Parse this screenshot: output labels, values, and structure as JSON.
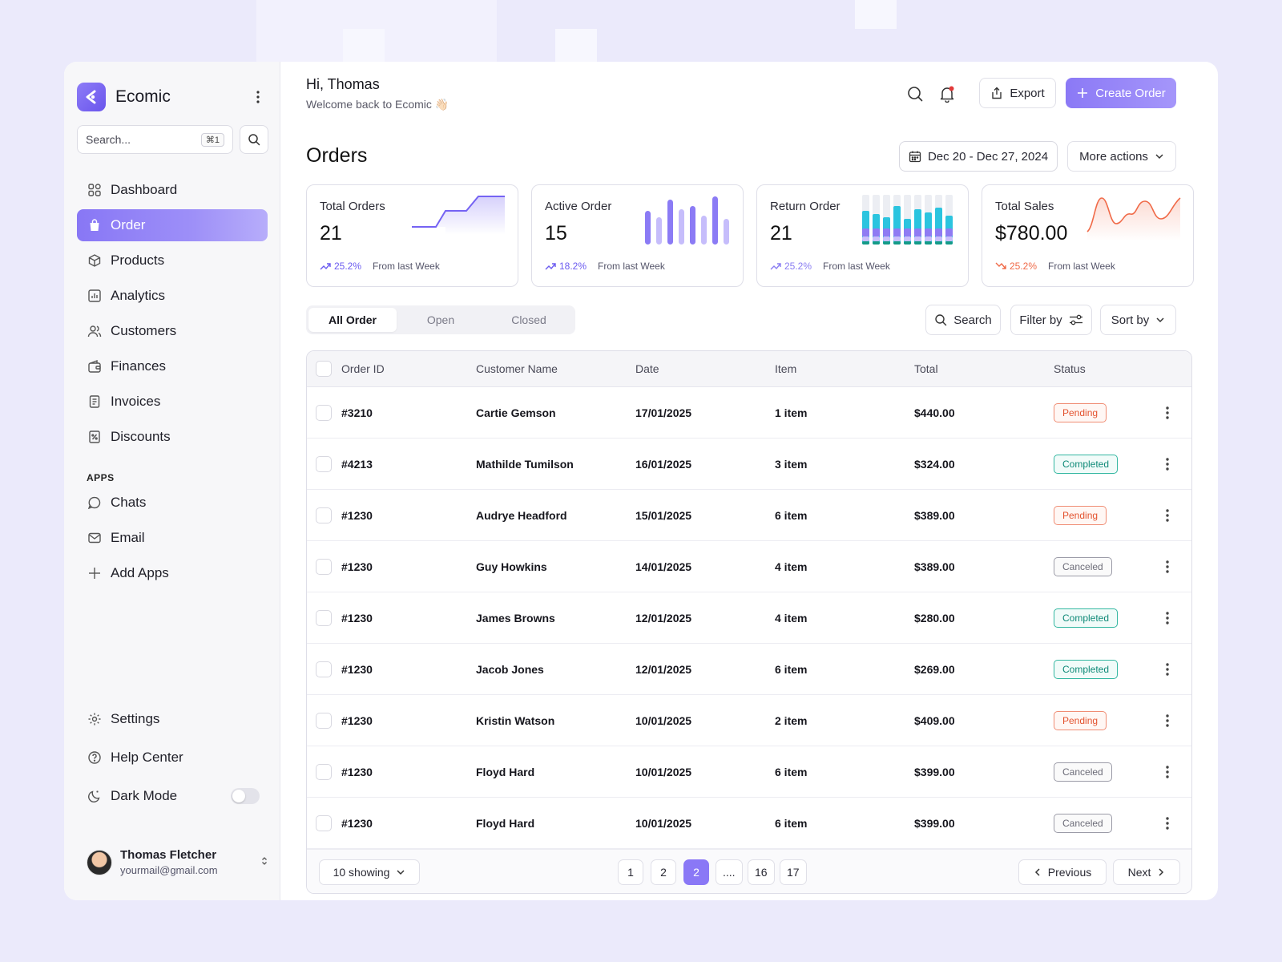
{
  "brand": {
    "name": "Ecomic"
  },
  "search": {
    "placeholder": "Search...",
    "shortcut": "⌘1"
  },
  "nav": {
    "items": [
      {
        "label": "Dashboard",
        "icon": "grid-icon"
      },
      {
        "label": "Order",
        "icon": "bag-icon",
        "active": true
      },
      {
        "label": "Products",
        "icon": "box-icon"
      },
      {
        "label": "Analytics",
        "icon": "chart-icon"
      },
      {
        "label": "Customers",
        "icon": "users-icon"
      },
      {
        "label": "Finances",
        "icon": "wallet-icon"
      },
      {
        "label": "Invoices",
        "icon": "receipt-icon"
      },
      {
        "label": "Discounts",
        "icon": "discount-icon"
      }
    ],
    "apps_label": "APPS",
    "apps": [
      {
        "label": "Chats",
        "icon": "chat-icon"
      },
      {
        "label": "Email",
        "icon": "mail-icon"
      },
      {
        "label": "Add Apps",
        "icon": "plus-icon"
      }
    ],
    "bottom": [
      {
        "label": "Settings",
        "icon": "gear-icon"
      },
      {
        "label": "Help Center",
        "icon": "help-icon"
      },
      {
        "label": "Dark Mode",
        "icon": "moon-icon"
      }
    ]
  },
  "user": {
    "name": "Thomas Fletcher",
    "email": "yourmail@gmail.com"
  },
  "header": {
    "greeting": "Hi, Thomas",
    "welcome": "Welcome back to Ecomic 👋🏻",
    "export_label": "Export",
    "create_label": "Create Order"
  },
  "page": {
    "title": "Orders",
    "date_range": "Dec 20 - Dec 27, 2024",
    "more_actions": "More actions"
  },
  "stats": [
    {
      "label": "Total Orders",
      "value": "21",
      "change": "25.2%",
      "trend": "up",
      "note": "From last Week",
      "color": "#6b5bf0"
    },
    {
      "label": "Active Order",
      "value": "15",
      "change": "18.2%",
      "trend": "up",
      "note": "From last Week",
      "color": "#6b5bf0"
    },
    {
      "label": "Return Order",
      "value": "21",
      "change": "25.2%",
      "trend": "up",
      "note": "From last Week",
      "color": "#8a7df2"
    },
    {
      "label": "Total Sales",
      "value": "$780.00",
      "change": "25.2%",
      "trend": "down",
      "note": "From last Week",
      "color": "#f06a48"
    }
  ],
  "tabs": [
    {
      "label": "All Order",
      "active": true
    },
    {
      "label": "Open"
    },
    {
      "label": "Closed"
    }
  ],
  "toolbar": {
    "search_label": "Search",
    "filter_label": "Filter by",
    "sort_label": "Sort by"
  },
  "table": {
    "columns": [
      "Order ID",
      "Customer Name",
      "Date",
      "Item",
      "Total",
      "Status"
    ],
    "rows": [
      {
        "id": "#3210",
        "customer": "Cartie Gemson",
        "date": "17/01/2025",
        "item": "1 item",
        "total": "$440.00",
        "status": "Pending"
      },
      {
        "id": "#4213",
        "customer": "Mathilde Tumilson",
        "date": "16/01/2025",
        "item": "3 item",
        "total": "$324.00",
        "status": "Completed"
      },
      {
        "id": "#1230",
        "customer": "Audrye Headford",
        "date": "15/01/2025",
        "item": "6 item",
        "total": "$389.00",
        "status": "Pending"
      },
      {
        "id": "#1230",
        "customer": "Guy Howkins",
        "date": "14/01/2025",
        "item": "4 item",
        "total": "$389.00",
        "status": "Canceled"
      },
      {
        "id": "#1230",
        "customer": "James Browns",
        "date": "12/01/2025",
        "item": "4 item",
        "total": "$280.00",
        "status": "Completed"
      },
      {
        "id": "#1230",
        "customer": "Jacob Jones",
        "date": "12/01/2025",
        "item": "6 item",
        "total": "$269.00",
        "status": "Completed"
      },
      {
        "id": "#1230",
        "customer": "Kristin Watson",
        "date": "10/01/2025",
        "item": "2 item",
        "total": "$409.00",
        "status": "Pending"
      },
      {
        "id": "#1230",
        "customer": "Floyd Hard",
        "date": "10/01/2025",
        "item": "6 item",
        "total": "$399.00",
        "status": "Canceled"
      },
      {
        "id": "#1230",
        "customer": "Floyd Hard",
        "date": "10/01/2025",
        "item": "6 item",
        "total": "$399.00",
        "status": "Canceled"
      }
    ]
  },
  "pagination": {
    "showing": "10 showing",
    "pages": [
      "1",
      "2",
      "2",
      "....",
      "16",
      "17"
    ],
    "active_index": 2,
    "previous": "Previous",
    "next": "Next"
  }
}
